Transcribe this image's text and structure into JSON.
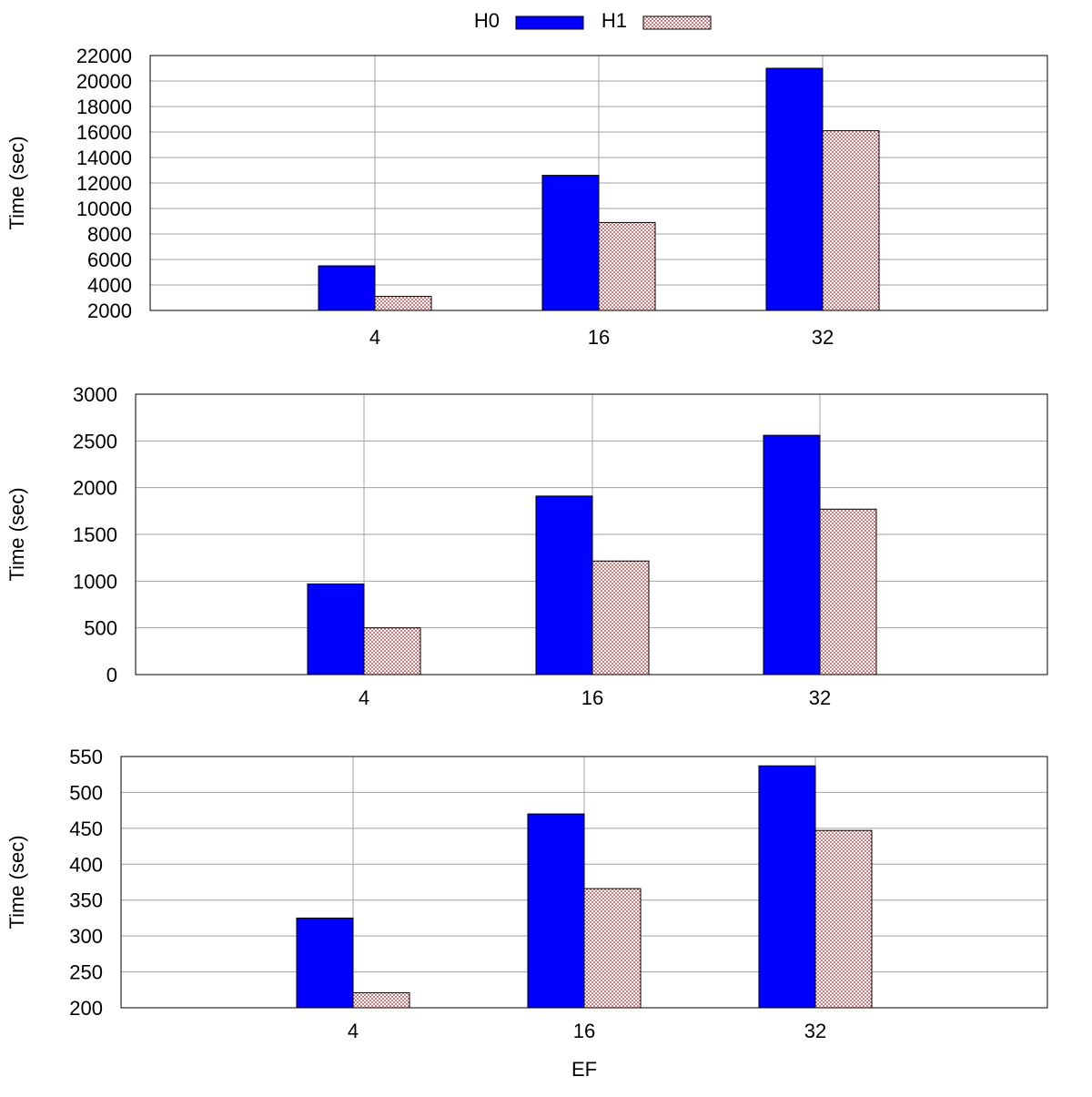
{
  "legend": {
    "entries": [
      {
        "label": "H0",
        "color": "#0000ff",
        "pattern": "solid"
      },
      {
        "label": "H1",
        "color": "#f4c2c2",
        "pattern": "crosshatch"
      }
    ],
    "placement": "top-center"
  },
  "xlabel": "EF",
  "chart_data": [
    {
      "type": "bar",
      "categories": [
        "4",
        "16",
        "32"
      ],
      "series": [
        {
          "name": "H0",
          "values": [
            5500,
            12600,
            21000
          ]
        },
        {
          "name": "H1",
          "values": [
            3100,
            8900,
            16100
          ]
        }
      ],
      "ylabel": "Time (sec)",
      "xlabel": "",
      "ylim": [
        2000,
        22000
      ],
      "yticks": [
        2000,
        4000,
        6000,
        8000,
        10000,
        12000,
        14000,
        16000,
        18000,
        20000,
        22000
      ],
      "grid": true
    },
    {
      "type": "bar",
      "categories": [
        "4",
        "16",
        "32"
      ],
      "series": [
        {
          "name": "H0",
          "values": [
            970,
            1910,
            2560
          ]
        },
        {
          "name": "H1",
          "values": [
            500,
            1215,
            1770
          ]
        }
      ],
      "ylabel": "Time (sec)",
      "xlabel": "",
      "ylim": [
        0,
        3000
      ],
      "yticks": [
        0,
        500,
        1000,
        1500,
        2000,
        2500,
        3000
      ],
      "grid": true
    },
    {
      "type": "bar",
      "categories": [
        "4",
        "16",
        "32"
      ],
      "series": [
        {
          "name": "H0",
          "values": [
            325,
            470,
            537
          ]
        },
        {
          "name": "H1",
          "values": [
            221,
            366,
            447
          ]
        }
      ],
      "ylabel": "Time (sec)",
      "xlabel": "EF",
      "ylim": [
        200,
        550
      ],
      "yticks": [
        200,
        250,
        300,
        350,
        400,
        450,
        500,
        550
      ],
      "grid": true
    }
  ]
}
